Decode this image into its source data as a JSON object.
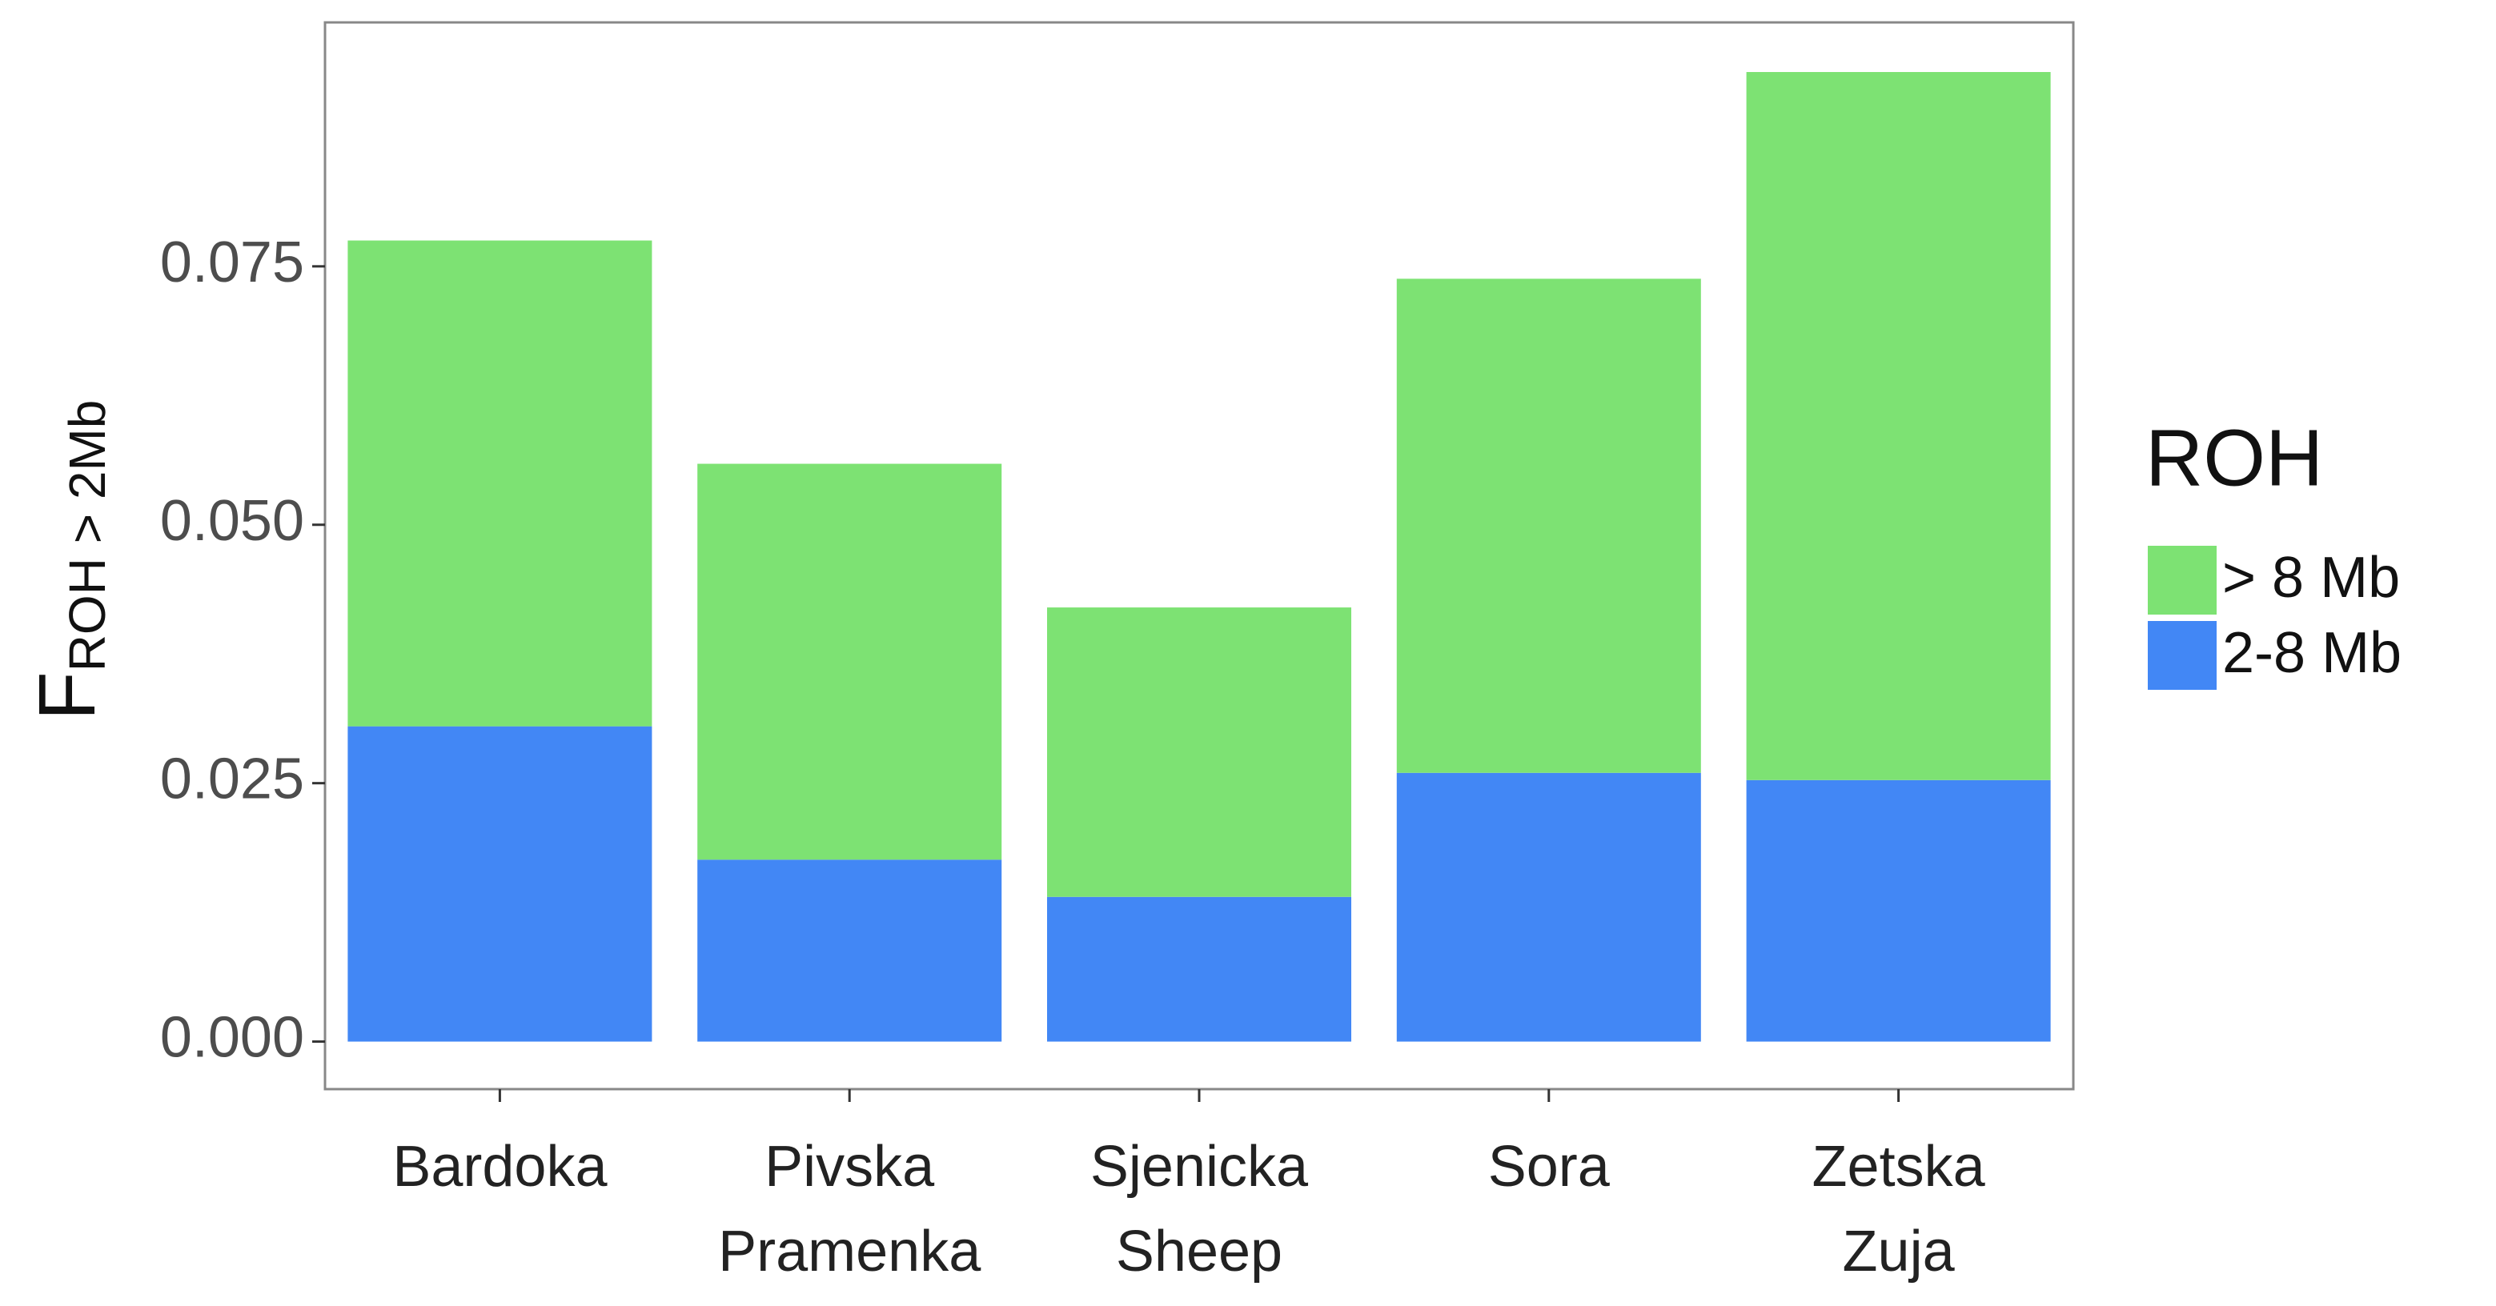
{
  "chart_data": {
    "type": "stacked_bar",
    "y_label": "F",
    "y_label_subscript": "ROH > 2Mb",
    "categories": [
      "Bardoka",
      "Pivska\nPramenka",
      "Sjenicka\nSheep",
      "Sora",
      "Zetska\nZuja"
    ],
    "series": [
      {
        "name": "2-8 Mb",
        "color": "#4287f5",
        "values": [
          0.0305,
          0.0176,
          0.014,
          0.026,
          0.0253
        ]
      },
      {
        "name": "> 8 Mb",
        "color": "#7de273",
        "values": [
          0.047,
          0.0383,
          0.028,
          0.0478,
          0.0685
        ]
      }
    ],
    "ylim": [
      -0.0046,
      0.0986
    ],
    "yticks": [
      {
        "value": 0,
        "label": "0.000"
      },
      {
        "value": 0.025,
        "label": "0.025"
      },
      {
        "value": 0.05,
        "label": "0.050"
      },
      {
        "value": 0.075,
        "label": "0.075"
      }
    ],
    "legend_title": "ROH",
    "legend_position": "right"
  }
}
